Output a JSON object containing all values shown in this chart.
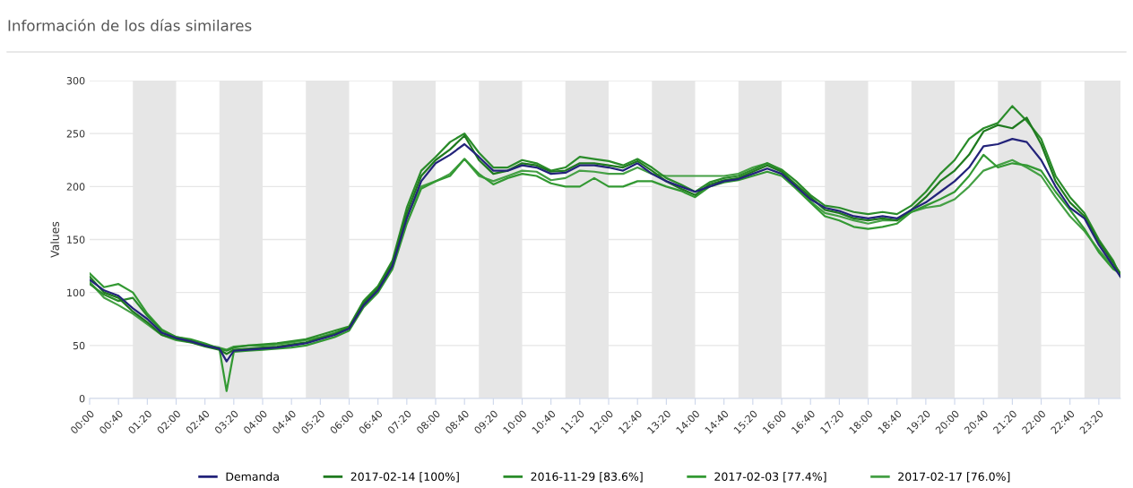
{
  "chart_data": {
    "type": "line",
    "title": "Información de los días similares",
    "ylabel": "Values",
    "x": [
      0,
      0.3333,
      0.6667,
      1,
      1.3333,
      1.6667,
      2,
      2.3333,
      2.6667,
      3,
      3.1667,
      3.3333,
      3.6667,
      4,
      4.3333,
      4.6667,
      5,
      5.3333,
      5.6667,
      6,
      6.3333,
      6.6667,
      7,
      7.3333,
      7.6667,
      8,
      8.3333,
      8.6667,
      9,
      9.3333,
      9.6667,
      10,
      10.3333,
      10.6667,
      11,
      11.3333,
      11.6667,
      12,
      12.3333,
      12.6667,
      13,
      13.3333,
      13.6667,
      14,
      14.3333,
      14.6667,
      15,
      15.3333,
      15.6667,
      16,
      16.3333,
      16.6667,
      17,
      17.3333,
      17.6667,
      18,
      18.3333,
      18.6667,
      19,
      19.3333,
      19.6667,
      20,
      20.3333,
      20.6667,
      21,
      21.3333,
      21.6667,
      22,
      22.3333,
      22.6667,
      23,
      23.3333,
      23.6667,
      23.8333
    ],
    "series": [
      {
        "name": "Demanda",
        "color": "#23237a",
        "values": [
          112,
          102,
          97,
          85,
          75,
          62,
          57,
          54,
          50,
          47,
          35,
          45,
          46,
          47,
          48,
          50,
          52,
          56,
          60,
          66,
          88,
          102,
          125,
          170,
          205,
          222,
          230,
          240,
          228,
          215,
          215,
          220,
          218,
          212,
          213,
          220,
          220,
          218,
          215,
          222,
          212,
          205,
          200,
          195,
          200,
          205,
          207,
          212,
          217,
          212,
          200,
          188,
          180,
          177,
          172,
          170,
          172,
          170,
          178,
          185,
          195,
          205,
          218,
          238,
          240,
          245,
          242,
          225,
          200,
          180,
          170,
          145,
          125,
          115
        ]
      },
      {
        "name": "2017-02-14 [100%]",
        "color": "#1f7a1f",
        "values": [
          115,
          100,
          95,
          82,
          72,
          60,
          56,
          53,
          49,
          46,
          42,
          46,
          47,
          48,
          49,
          51,
          53,
          57,
          61,
          67,
          90,
          104,
          128,
          175,
          210,
          225,
          235,
          248,
          225,
          212,
          215,
          222,
          220,
          214,
          215,
          222,
          222,
          220,
          218,
          224,
          215,
          205,
          198,
          192,
          202,
          206,
          208,
          214,
          220,
          214,
          202,
          190,
          178,
          175,
          170,
          168,
          170,
          168,
          178,
          190,
          205,
          215,
          230,
          252,
          258,
          255,
          265,
          240,
          205,
          185,
          172,
          148,
          128,
          118
        ]
      },
      {
        "name": "2016-11-29 [83.6%]",
        "color": "#2a8c2a",
        "values": [
          108,
          98,
          92,
          95,
          78,
          64,
          58,
          55,
          51,
          47,
          45,
          48,
          50,
          51,
          52,
          54,
          56,
          60,
          64,
          68,
          92,
          106,
          130,
          180,
          215,
          228,
          242,
          250,
          232,
          218,
          218,
          225,
          222,
          215,
          218,
          228,
          226,
          224,
          220,
          226,
          218,
          208,
          202,
          195,
          204,
          208,
          210,
          216,
          222,
          216,
          205,
          192,
          182,
          180,
          176,
          174,
          176,
          174,
          182,
          195,
          212,
          225,
          245,
          255,
          260,
          276,
          262,
          245,
          210,
          190,
          175,
          150,
          130,
          115
        ]
      },
      {
        "name": "2017-02-03 [77.4%]",
        "color": "#339933",
        "values": [
          118,
          105,
          108,
          100,
          80,
          65,
          58,
          56,
          52,
          47,
          7,
          44,
          45,
          46,
          47,
          48,
          50,
          54,
          58,
          64,
          86,
          100,
          122,
          165,
          198,
          205,
          210,
          226,
          212,
          202,
          208,
          212,
          210,
          203,
          200,
          200,
          208,
          200,
          200,
          205,
          205,
          200,
          196,
          190,
          200,
          204,
          206,
          210,
          214,
          210,
          198,
          185,
          172,
          168,
          162,
          160,
          162,
          165,
          176,
          182,
          188,
          195,
          210,
          230,
          218,
          222,
          220,
          215,
          195,
          178,
          160,
          138,
          122,
          118
        ]
      },
      {
        "name": "2017-02-17 [76.0%]",
        "color": "#45a045",
        "values": [
          110,
          95,
          88,
          80,
          70,
          60,
          55,
          53,
          50,
          48,
          46,
          49,
          50,
          50,
          51,
          53,
          55,
          58,
          62,
          67,
          90,
          104,
          126,
          172,
          200,
          205,
          212,
          226,
          210,
          205,
          210,
          215,
          214,
          206,
          208,
          215,
          214,
          212,
          212,
          218,
          212,
          210,
          210,
          210,
          210,
          210,
          212,
          218,
          222,
          215,
          200,
          186,
          175,
          172,
          168,
          165,
          168,
          168,
          176,
          180,
          182,
          188,
          200,
          215,
          220,
          225,
          218,
          210,
          190,
          172,
          158,
          140,
          124,
          118
        ]
      }
    ],
    "xlim": [
      0,
      23.8333
    ],
    "xticks": [
      {
        "value": 0,
        "label": "00:00"
      },
      {
        "value": 0.6667,
        "label": "00:40"
      },
      {
        "value": 1.3333,
        "label": "01:20"
      },
      {
        "value": 2,
        "label": "02:00"
      },
      {
        "value": 2.6667,
        "label": "02:40"
      },
      {
        "value": 3.3333,
        "label": "03:20"
      },
      {
        "value": 4,
        "label": "04:00"
      },
      {
        "value": 4.6667,
        "label": "04:40"
      },
      {
        "value": 5.3333,
        "label": "05:20"
      },
      {
        "value": 6,
        "label": "06:00"
      },
      {
        "value": 6.6667,
        "label": "06:40"
      },
      {
        "value": 7.3333,
        "label": "07:20"
      },
      {
        "value": 8,
        "label": "08:00"
      },
      {
        "value": 8.6667,
        "label": "08:40"
      },
      {
        "value": 9.3333,
        "label": "09:20"
      },
      {
        "value": 10,
        "label": "10:00"
      },
      {
        "value": 10.6667,
        "label": "10:40"
      },
      {
        "value": 11.3333,
        "label": "11:20"
      },
      {
        "value": 12,
        "label": "12:00"
      },
      {
        "value": 12.6667,
        "label": "12:40"
      },
      {
        "value": 13.3333,
        "label": "13:20"
      },
      {
        "value": 14,
        "label": "14:00"
      },
      {
        "value": 14.6667,
        "label": "14:40"
      },
      {
        "value": 15.3333,
        "label": "15:20"
      },
      {
        "value": 16,
        "label": "16:00"
      },
      {
        "value": 16.6667,
        "label": "16:40"
      },
      {
        "value": 17.3333,
        "label": "17:20"
      },
      {
        "value": 18,
        "label": "18:00"
      },
      {
        "value": 18.6667,
        "label": "18:40"
      },
      {
        "value": 19.3333,
        "label": "19:20"
      },
      {
        "value": 20,
        "label": "20:00"
      },
      {
        "value": 20.6667,
        "label": "20:40"
      },
      {
        "value": 21.3333,
        "label": "21:20"
      },
      {
        "value": 22,
        "label": "22:00"
      },
      {
        "value": 22.6667,
        "label": "22:40"
      },
      {
        "value": 23.3333,
        "label": "23:20"
      }
    ],
    "ylim": [
      0,
      300
    ],
    "yticks": [
      0,
      50,
      100,
      150,
      200,
      250,
      300
    ],
    "grid": "y",
    "legend": "bottom",
    "marker": "none",
    "line_style": "solid",
    "bands": [
      {
        "axis": "x",
        "from": 1,
        "to": 2,
        "color": "#e6e6e6"
      },
      {
        "axis": "x",
        "from": 3,
        "to": 4,
        "color": "#e6e6e6"
      },
      {
        "axis": "x",
        "from": 5,
        "to": 6,
        "color": "#e6e6e6"
      },
      {
        "axis": "x",
        "from": 7,
        "to": 8,
        "color": "#e6e6e6"
      },
      {
        "axis": "x",
        "from": 9,
        "to": 10,
        "color": "#e6e6e6"
      },
      {
        "axis": "x",
        "from": 11,
        "to": 12,
        "color": "#e6e6e6"
      },
      {
        "axis": "x",
        "from": 13,
        "to": 14,
        "color": "#e6e6e6"
      },
      {
        "axis": "x",
        "from": 15,
        "to": 16,
        "color": "#e6e6e6"
      },
      {
        "axis": "x",
        "from": 17,
        "to": 18,
        "color": "#e6e6e6"
      },
      {
        "axis": "x",
        "from": 19,
        "to": 20,
        "color": "#e6e6e6"
      },
      {
        "axis": "x",
        "from": 21,
        "to": 22,
        "color": "#e6e6e6"
      },
      {
        "axis": "x",
        "from": 23,
        "to": 23.8333,
        "color": "#e6e6e6"
      }
    ]
  }
}
